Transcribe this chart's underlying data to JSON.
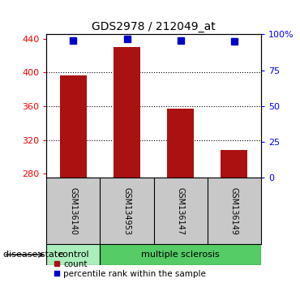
{
  "title": "GDS2978 / 212049_at",
  "samples": [
    "GSM136140",
    "GSM134953",
    "GSM136147",
    "GSM136149"
  ],
  "bar_values": [
    396,
    430,
    357,
    308
  ],
  "percentile_values": [
    96,
    97,
    96,
    95
  ],
  "bar_color": "#aa1111",
  "percentile_color": "#0000cc",
  "ylim_left": [
    275,
    445
  ],
  "ylim_right": [
    0,
    100
  ],
  "yticks_left": [
    280,
    320,
    360,
    400,
    440
  ],
  "yticks_right": [
    0,
    25,
    50,
    75,
    100
  ],
  "yticklabels_right": [
    "0",
    "25",
    "50",
    "75",
    "100%"
  ],
  "grid_ticks": [
    400,
    360,
    320
  ],
  "disease_groups": [
    {
      "label": "control",
      "n_samples": 1,
      "color": "#aaeebb"
    },
    {
      "label": "multiple sclerosis",
      "n_samples": 3,
      "color": "#55cc66"
    }
  ],
  "disease_state_label": "disease state",
  "legend_count_label": "count",
  "legend_pct_label": "percentile rank within the sample",
  "plot_bg_color": "#ffffff",
  "sample_box_color": "#c8c8c8",
  "bar_bottom": 275,
  "percentile_marker_size": 6,
  "bar_width": 0.5
}
